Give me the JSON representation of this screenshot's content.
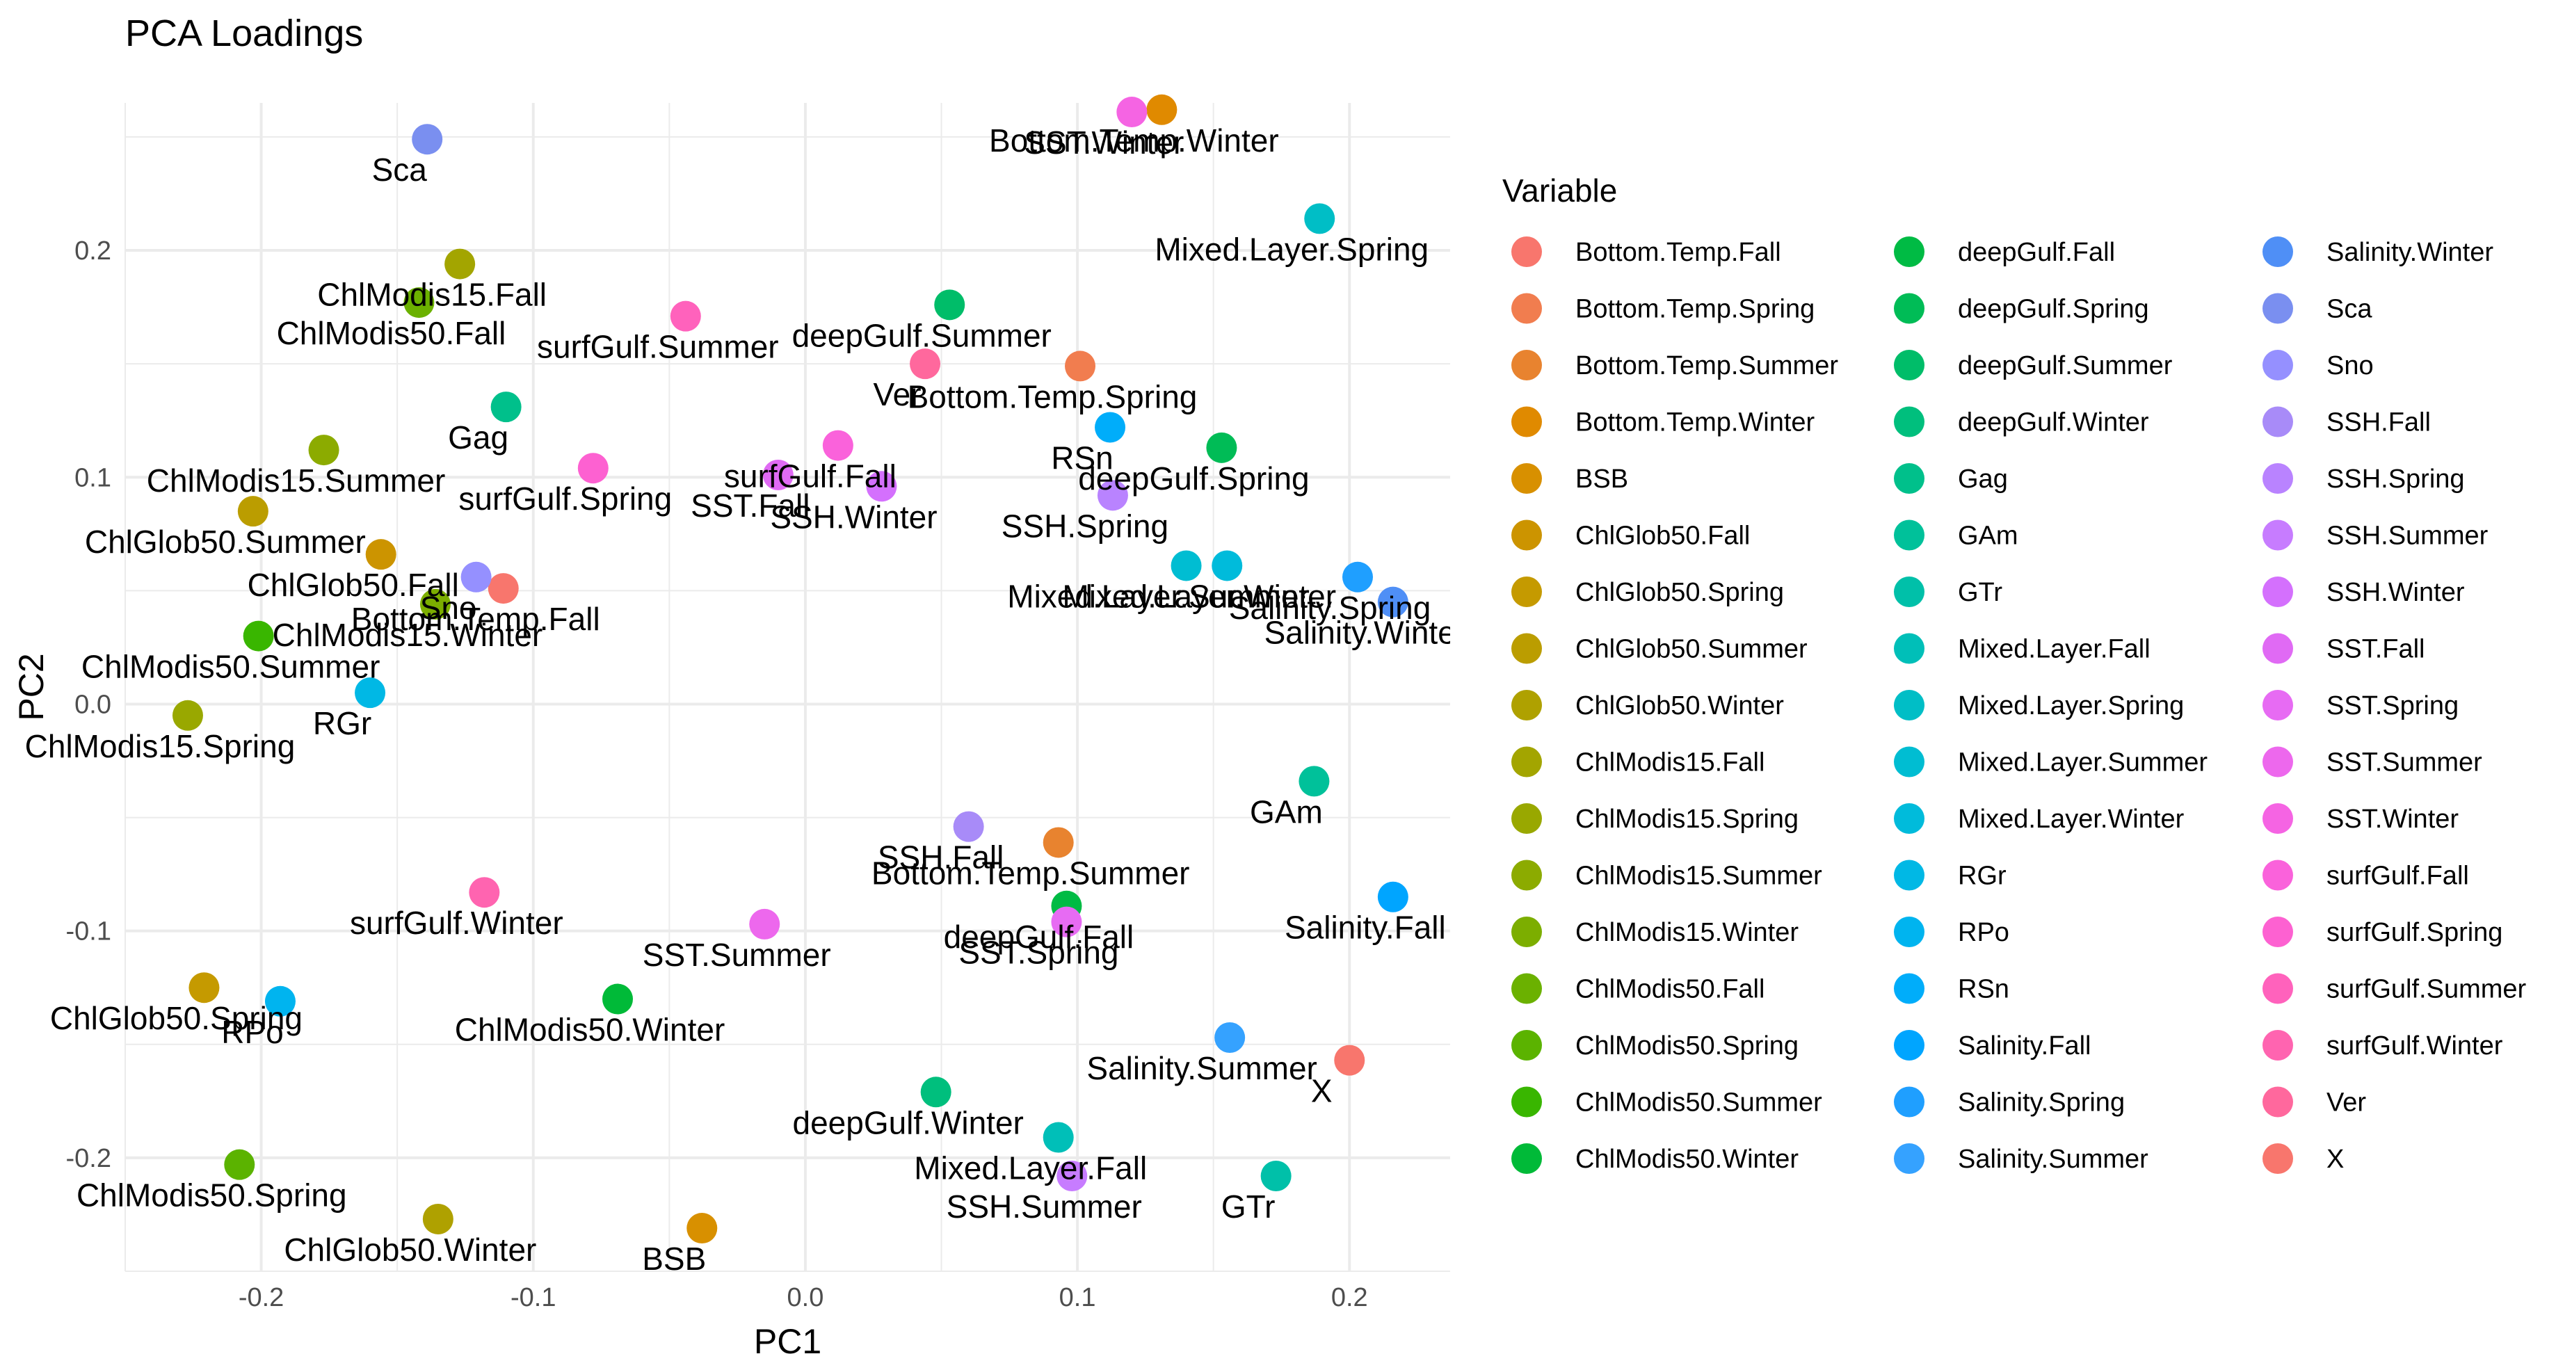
{
  "chart_data": {
    "type": "scatter",
    "title": "PCA Loadings",
    "xlabel": "PC1",
    "ylabel": "PC2",
    "xlim": [
      -0.25,
      0.237
    ],
    "ylim": [
      -0.25,
      0.265
    ],
    "xticks": [
      -0.2,
      -0.1,
      0.0,
      0.1,
      0.2
    ],
    "xtick_labels": [
      "-0.2",
      "-0.1",
      "0.0",
      "0.1",
      "0.2"
    ],
    "yticks": [
      -0.2,
      -0.1,
      0.0,
      0.1,
      0.2
    ],
    "ytick_labels": [
      "-0.2",
      "-0.1",
      "0.0",
      "0.1",
      "0.2"
    ],
    "grid": true,
    "legend_title": "Variable",
    "legend_position": "right",
    "legend_columns": 3,
    "points": [
      {
        "name": "Bottom.Temp.Fall",
        "x": -0.111,
        "y": 0.051,
        "label": "Bottom.Temp.Fall",
        "color": "#F8766D"
      },
      {
        "name": "Bottom.Temp.Spring",
        "x": 0.101,
        "y": 0.149,
        "label": "Bottom.Temp.Spring",
        "color": "#F17D4F"
      },
      {
        "name": "Bottom.Temp.Summer",
        "x": 0.093,
        "y": -0.061,
        "label": "Bottom.Temp.Summer",
        "color": "#E8832F"
      },
      {
        "name": "Bottom.Temp.Winter",
        "x": 0.131,
        "y": 0.262,
        "label": "Bottom.Temp.Winter",
        "color": "#E08A00"
      },
      {
        "name": "BSB",
        "x": -0.038,
        "y": -0.231,
        "label": "BSB",
        "color": "#D89000"
      },
      {
        "name": "ChlGlob50.Fall",
        "x": -0.156,
        "y": 0.066,
        "label": "ChlGlob50.Fall",
        "color": "#CC9400"
      },
      {
        "name": "ChlGlob50.Spring",
        "x": -0.221,
        "y": -0.125,
        "label": "ChlGlob50.Spring",
        "color": "#C59A00"
      },
      {
        "name": "ChlGlob50.Summer",
        "x": -0.203,
        "y": 0.085,
        "label": "ChlGlob50.Summer",
        "color": "#BB9D00"
      },
      {
        "name": "ChlGlob50.Winter",
        "x": -0.135,
        "y": -0.227,
        "label": "ChlGlob50.Winter",
        "color": "#AFA100"
      },
      {
        "name": "ChlModis15.Fall",
        "x": -0.127,
        "y": 0.194,
        "label": "ChlModis15.Fall",
        "color": "#A3A500"
      },
      {
        "name": "ChlModis15.Spring",
        "x": -0.227,
        "y": -0.005,
        "label": "ChlModis15.Spring",
        "color": "#99A800"
      },
      {
        "name": "ChlModis15.Summer",
        "x": -0.177,
        "y": 0.112,
        "label": "ChlModis15.Summer",
        "color": "#8CAB00"
      },
      {
        "name": "ChlModis15.Winter",
        "x": -0.136,
        "y": 0.044,
        "label": "ChlModis15.Winter",
        "color": "#7CAE00"
      },
      {
        "name": "ChlModis50.Fall",
        "x": -0.142,
        "y": 0.177,
        "label": "ChlModis50.Fall",
        "color": "#6BB100"
      },
      {
        "name": "ChlModis50.Spring",
        "x": -0.208,
        "y": -0.203,
        "label": "ChlModis50.Spring",
        "color": "#5BB300"
      },
      {
        "name": "ChlModis50.Summer",
        "x": -0.201,
        "y": 0.03,
        "label": "ChlModis50.Summer",
        "color": "#39B600"
      },
      {
        "name": "ChlModis50.Winter",
        "x": -0.069,
        "y": -0.13,
        "label": "ChlModis50.Winter",
        "color": "#00BA38"
      },
      {
        "name": "deepGulf.Fall",
        "x": 0.096,
        "y": -0.089,
        "label": "deepGulf.Fall",
        "color": "#00BB44"
      },
      {
        "name": "deepGulf.Spring",
        "x": 0.153,
        "y": 0.113,
        "label": "deepGulf.Spring",
        "color": "#00BC56"
      },
      {
        "name": "deepGulf.Summer",
        "x": 0.053,
        "y": 0.176,
        "label": "deepGulf.Summer",
        "color": "#00BD69"
      },
      {
        "name": "deepGulf.Winter",
        "x": 0.048,
        "y": -0.171,
        "label": "deepGulf.Winter",
        "color": "#00BF7D"
      },
      {
        "name": "Gag",
        "x": -0.11,
        "y": 0.131,
        "label": "Gag",
        "color": "#00C08B"
      },
      {
        "name": "GAm",
        "x": 0.187,
        "y": -0.034,
        "label": "GAm",
        "color": "#00C19A"
      },
      {
        "name": "GTr",
        "x": 0.173,
        "y": -0.208,
        "label": "GTr",
        "color": "#00C0A9"
      },
      {
        "name": "Mixed.Layer.Fall",
        "x": 0.093,
        "y": -0.191,
        "label": "Mixed.Layer.Fall",
        "color": "#00BFB8"
      },
      {
        "name": "Mixed.Layer.Spring",
        "x": 0.189,
        "y": 0.214,
        "label": "Mixed.Layer.Spring",
        "color": "#00BEC6"
      },
      {
        "name": "Mixed.Layer.Summer",
        "x": 0.14,
        "y": 0.061,
        "label": "Mixed.Layer.Summer",
        "color": "#00BDD2"
      },
      {
        "name": "Mixed.Layer.Winter",
        "x": 0.155,
        "y": 0.061,
        "label": "Mixed.Layer.Winter",
        "color": "#00BBDB"
      },
      {
        "name": "RGr",
        "x": -0.16,
        "y": 0.005,
        "label": "RGr",
        "color": "#00B8E5"
      },
      {
        "name": "RPo",
        "x": -0.193,
        "y": -0.131,
        "label": "RPo",
        "color": "#00B4EF"
      },
      {
        "name": "RSn",
        "x": 0.112,
        "y": 0.122,
        "label": "RSn",
        "color": "#00ADFA"
      },
      {
        "name": "Salinity.Fall",
        "x": 0.216,
        "y": -0.085,
        "label": "Salinity.Fall",
        "color": "#00A5FF"
      },
      {
        "name": "Salinity.Spring",
        "x": 0.203,
        "y": 0.056,
        "label": "Salinity.Spring",
        "color": "#1F9FFF"
      },
      {
        "name": "Salinity.Summer",
        "x": 0.156,
        "y": -0.147,
        "label": "Salinity.Summer",
        "color": "#35A2FF"
      },
      {
        "name": "Salinity.Winter",
        "x": 0.216,
        "y": 0.045,
        "label": "Salinity.Winter",
        "color": "#4F8FF6"
      },
      {
        "name": "Sca",
        "x": -0.139,
        "y": 0.249,
        "label": "Sca",
        "color": "#7A8FF0"
      },
      {
        "name": "Sno",
        "x": -0.121,
        "y": 0.056,
        "label": "Sno",
        "color": "#9590FF"
      },
      {
        "name": "SSH.Fall",
        "x": 0.06,
        "y": -0.054,
        "label": "SSH.Fall",
        "color": "#A88BF8"
      },
      {
        "name": "SSH.Spring",
        "x": 0.113,
        "y": 0.092,
        "label": "SSH.Spring",
        "color": "#B983FF"
      },
      {
        "name": "SSH.Summer",
        "x": 0.098,
        "y": -0.208,
        "label": "SSH.Summer",
        "color": "#C77CFF"
      },
      {
        "name": "SSH.Winter",
        "x": 0.028,
        "y": 0.096,
        "label": "SSH.Winter",
        "color": "#D470FD"
      },
      {
        "name": "SST.Fall",
        "x": -0.01,
        "y": 0.101,
        "label": "SST.Fall",
        "color": "#E06AF4"
      },
      {
        "name": "SST.Spring",
        "x": 0.096,
        "y": -0.096,
        "label": "SST.Spring",
        "color": "#E76BF3"
      },
      {
        "name": "SST.Summer",
        "x": -0.015,
        "y": -0.097,
        "label": "SST.Summer",
        "color": "#ED68ED"
      },
      {
        "name": "SST.Winter",
        "x": 0.12,
        "y": 0.261,
        "label": "SST.Winter",
        "color": "#F564E3"
      },
      {
        "name": "surfGulf.Fall",
        "x": 0.012,
        "y": 0.114,
        "label": "surfGulf.Fall",
        "color": "#FA62DB"
      },
      {
        "name": "surfGulf.Spring",
        "x": -0.078,
        "y": 0.104,
        "label": "surfGulf.Spring",
        "color": "#FD61D1"
      },
      {
        "name": "surfGulf.Summer",
        "x": -0.044,
        "y": 0.171,
        "label": "surfGulf.Summer",
        "color": "#FF62BC"
      },
      {
        "name": "surfGulf.Winter",
        "x": -0.118,
        "y": -0.083,
        "label": "surfGulf.Winter",
        "color": "#FF64B0"
      },
      {
        "name": "Ver",
        "x": 0.044,
        "y": 0.15,
        "label": "Ver",
        "color": "#FF689D"
      },
      {
        "name": "X",
        "x": 0.2,
        "y": -0.157,
        "label": "X",
        "color": "#F8766D"
      }
    ]
  }
}
